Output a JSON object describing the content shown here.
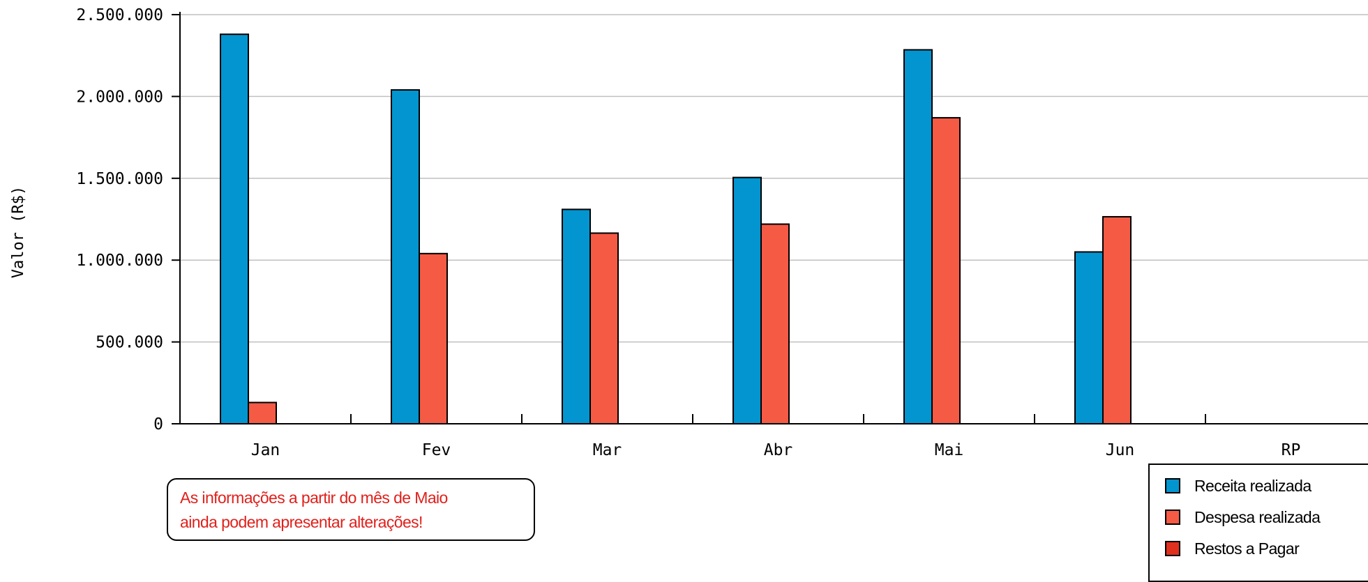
{
  "chart_data": {
    "type": "bar",
    "title": "",
    "xlabel": "",
    "ylabel": "Valor (R$)",
    "categories": [
      "Jan",
      "Fev",
      "Mar",
      "Abr",
      "Mai",
      "Jun",
      "RP"
    ],
    "series": [
      {
        "name": "Receita realizada",
        "color": "#0395cf",
        "values": [
          2380000,
          2040000,
          1310000,
          1505000,
          2285000,
          1050000,
          0
        ]
      },
      {
        "name": "Despesa realizada",
        "color": "#f55a45",
        "values": [
          130000,
          1040000,
          1165000,
          1220000,
          1870000,
          1265000,
          0
        ]
      },
      {
        "name": "Restos a Pagar",
        "color": "#e0301e",
        "values": [
          0,
          0,
          0,
          0,
          0,
          0,
          0
        ]
      }
    ],
    "ylim": [
      0,
      2500000
    ],
    "yticks": [
      0,
      500000,
      1000000,
      1500000,
      2000000,
      2500000
    ],
    "ytick_labels": [
      "0",
      "500.000",
      "1.000.000",
      "1.500.000",
      "2.000.000",
      "2.500.000"
    ],
    "grid": true,
    "legend_position": "bottom-right",
    "annotation": {
      "lines": [
        "As informações a partir do mês de Maio",
        "ainda podem apresentar alterações!"
      ],
      "color": "#e0201b"
    }
  }
}
